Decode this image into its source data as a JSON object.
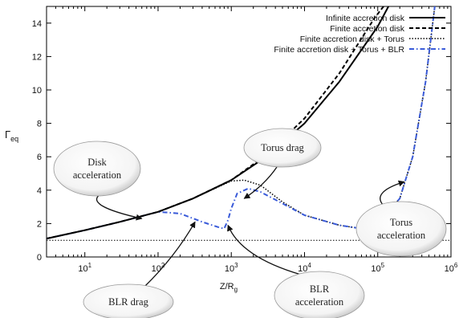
{
  "chart_data": {
    "type": "line",
    "xscale": "log",
    "xlim": [
      3,
      1000000
    ],
    "ylim": [
      0,
      15
    ],
    "xlabel": "Z/R",
    "xlabel_sub": "g",
    "ylabel": "Γ",
    "ylabel_sub": "eq",
    "xticks": [
      {
        "value": 10,
        "base": "10",
        "exp": "1"
      },
      {
        "value": 100,
        "base": "10",
        "exp": "2"
      },
      {
        "value": 1000,
        "base": "10",
        "exp": "3"
      },
      {
        "value": 10000,
        "base": "10",
        "exp": "4"
      },
      {
        "value": 100000,
        "base": "10",
        "exp": "5"
      },
      {
        "value": 1000000,
        "base": "10",
        "exp": "6"
      }
    ],
    "yticks": [
      "0",
      "2",
      "4",
      "6",
      "8",
      "10",
      "12",
      "14"
    ],
    "grid": false,
    "legend_position": "top-right",
    "series": [
      {
        "name": "Infinite accretion disk",
        "color": "#000000",
        "style": "solid",
        "x": [
          3,
          10,
          30,
          100,
          300,
          1000,
          3000,
          10000,
          30000,
          100000,
          140000
        ],
        "y": [
          1.1,
          1.6,
          2.1,
          2.7,
          3.5,
          4.6,
          6.0,
          8.0,
          10.5,
          13.8,
          15
        ]
      },
      {
        "name": "Finite accretion disk",
        "color": "#000000",
        "style": "dashed",
        "x": [
          3,
          10,
          30,
          100,
          300,
          1000,
          3000,
          10000,
          30000,
          90000,
          120000
        ],
        "y": [
          1.1,
          1.6,
          2.1,
          2.7,
          3.5,
          4.6,
          6.1,
          8.3,
          11.0,
          14.3,
          15
        ]
      },
      {
        "name": "Finite accretion disk + Torus",
        "color": "#000000",
        "style": "dotted",
        "x": [
          3,
          10,
          30,
          100,
          300,
          1000,
          1500,
          2500,
          5000,
          10000,
          30000,
          50000,
          100000,
          200000,
          300000,
          450000,
          600000
        ],
        "y": [
          1.1,
          1.6,
          2.1,
          2.7,
          3.5,
          4.55,
          4.6,
          4.3,
          3.3,
          2.5,
          1.9,
          1.75,
          2.0,
          3.5,
          6.0,
          10.5,
          15
        ]
      },
      {
        "name": "Finite accretion disk + Torus + BLR",
        "color": "#3a5bd9",
        "style": "dashdot",
        "x": [
          3,
          10,
          30,
          100,
          200,
          400,
          700,
          800,
          900,
          1000,
          1200,
          1700,
          2500,
          5000,
          10000,
          30000,
          50000,
          100000,
          200000,
          300000,
          450000,
          600000
        ],
        "y": [
          1.1,
          1.6,
          2.1,
          2.7,
          2.6,
          2.1,
          1.75,
          1.7,
          2.2,
          2.9,
          3.8,
          4.1,
          3.9,
          3.2,
          2.5,
          1.9,
          1.75,
          2.0,
          3.5,
          6.0,
          10.5,
          15
        ]
      }
    ],
    "reference_line": {
      "y": 1,
      "color": "#000000",
      "style": "dotted"
    },
    "annotations": [
      {
        "lines": [
          "Disk",
          "acceleration"
        ],
        "target_x": 60,
        "target_y": 2.3
      },
      {
        "lines": [
          "Torus drag"
        ],
        "target_x": 1500,
        "target_y": 3.5
      },
      {
        "lines": [
          "Torus",
          "acceleration"
        ],
        "target_x": 230000,
        "target_y": 4.5
      },
      {
        "lines": [
          "BLR drag"
        ],
        "target_x": 320,
        "target_y": 2.1
      },
      {
        "lines": [
          "BLR",
          "acceleration"
        ],
        "target_x": 900,
        "target_y": 1.9
      }
    ]
  }
}
